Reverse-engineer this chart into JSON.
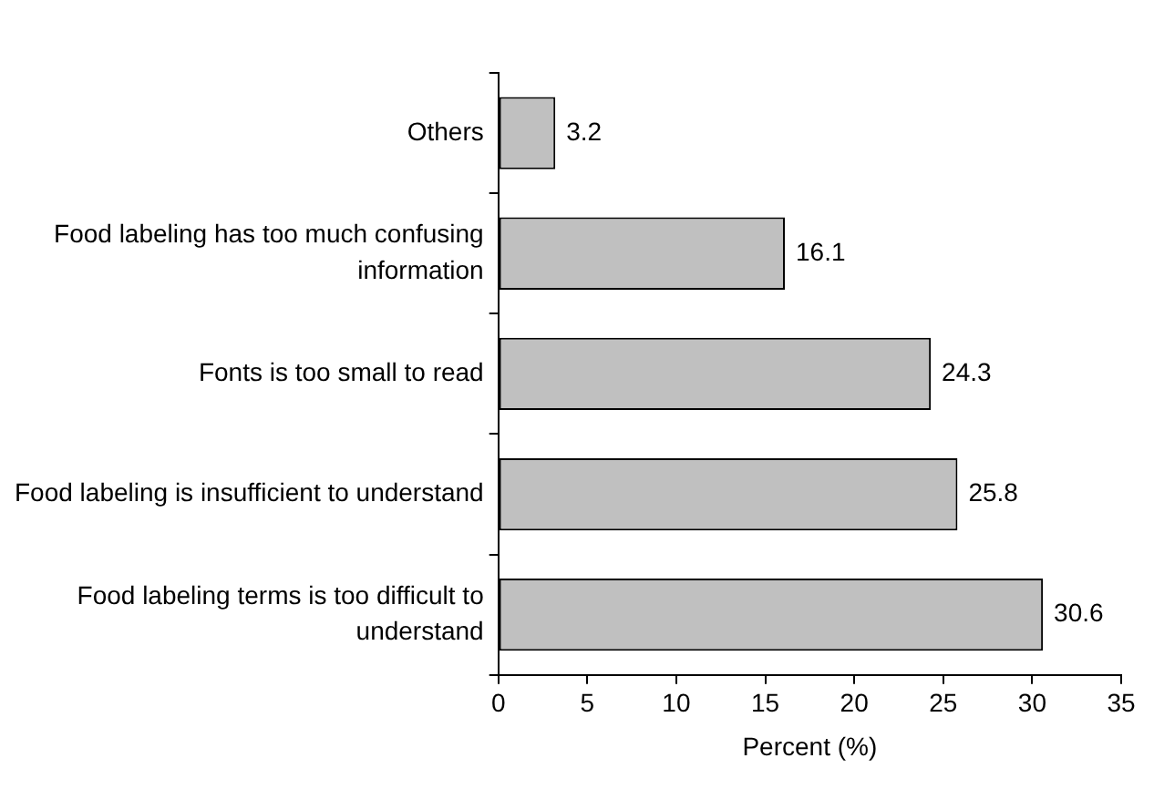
{
  "chart_data": {
    "type": "bar",
    "orientation": "horizontal",
    "categories": [
      "Others",
      "Food labeling has too much confusing information",
      "Fonts is too small to read",
      "Food labeling is insufficient to understand",
      "Food labeling terms is too difficult to understand"
    ],
    "values": [
      3.2,
      16.1,
      24.3,
      25.8,
      30.6
    ],
    "color": "#c0c0c0",
    "xlabel": "Percent (%)",
    "xlim": [
      0,
      35
    ],
    "xticks": [
      0,
      5,
      10,
      15,
      20,
      25,
      30,
      35
    ],
    "grid": false,
    "legend": false,
    "data_labels": true
  }
}
